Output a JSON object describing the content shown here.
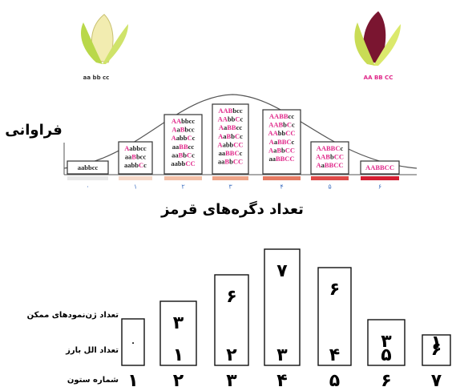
{
  "top": {
    "white_corn_label": "aa bb cc",
    "red_corn_label": "AA BB CC",
    "y_label": "فراوانی",
    "x_label": "تعداد دگره‌های قرمز",
    "columns": [
      {
        "number": "۰",
        "genotypes": [
          "aabbcc"
        ]
      },
      {
        "number": "۱",
        "genotypes": [
          "Aabbcc",
          "aaBbcc",
          "aabbCc"
        ]
      },
      {
        "number": "۲",
        "genotypes": [
          "AAbbcc",
          "AaBbcc",
          "AabbCc",
          "aaBBcc",
          "aaBbCc",
          "aabbCC"
        ]
      },
      {
        "number": "۳",
        "genotypes": [
          "AABbcc",
          "AAbbCc",
          "AaBBcc",
          "AaBbCc",
          "AabbCC",
          "aaBBCc",
          "aaBbCC"
        ]
      },
      {
        "number": "۴",
        "genotypes": [
          "AABBcc",
          "AABbCc",
          "AAbbCC",
          "AaBBCc",
          "AaBbCC",
          "aaBBCC"
        ]
      },
      {
        "number": "۵",
        "genotypes": [
          "AABBCc",
          "AABbCC",
          "AaBBCC"
        ]
      },
      {
        "number": "۶",
        "genotypes": [
          "AABBCC"
        ]
      }
    ]
  },
  "bottom": {
    "row_labels": [
      "تعداد ژن‌نمودهای ممکن",
      "تعداد الل بارز",
      "شماره ستون"
    ],
    "columns": [
      {
        "dominant_alleles": "۰",
        "column_number": "۱"
      },
      {
        "genotype_count": "۳",
        "dominant_alleles": "۱",
        "column_number": "۲"
      },
      {
        "genotype_count": "۶",
        "dominant_alleles": "۲",
        "column_number": "۳"
      },
      {
        "genotype_count": "۷",
        "dominant_alleles": "۳",
        "column_number": "۴"
      },
      {
        "genotype_count": "۶",
        "dominant_alleles": "۴",
        "column_number": "۵"
      },
      {
        "genotype_count": "۳",
        "dominant_alleles": "۵",
        "column_number": "۶"
      },
      {
        "genotype_count": "۱",
        "dominant_alleles": "۶",
        "column_number": "۷"
      }
    ]
  }
}
